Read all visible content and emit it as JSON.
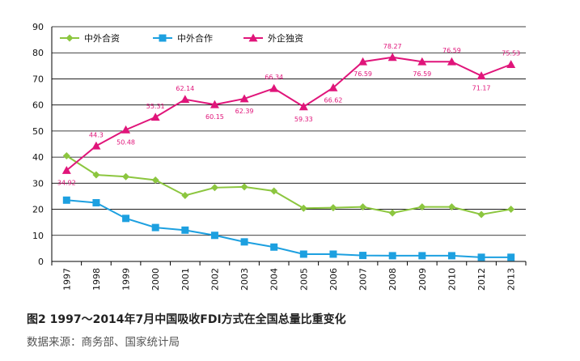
{
  "chart_data": {
    "type": "line",
    "categories": [
      "1997",
      "1998",
      "1999",
      "2000",
      "2001",
      "2002",
      "2003",
      "2004",
      "2005",
      "2006",
      "2007",
      "2008",
      "2009",
      "2010",
      "2012",
      "2013"
    ],
    "ylim": [
      0,
      90
    ],
    "yticks": [
      0,
      10,
      20,
      30,
      40,
      50,
      60,
      70,
      80,
      90
    ],
    "grid": "horizontal",
    "legend_position": "top-left",
    "series": [
      {
        "name": "中外合资",
        "marker": "diamond",
        "color": "#8cc63f",
        "values": [
          40.5,
          33.2,
          32.5,
          31.2,
          25.3,
          28.3,
          28.6,
          27.0,
          20.4,
          20.6,
          20.9,
          18.6,
          20.9,
          20.9,
          18.0,
          20.0
        ],
        "data_labels": []
      },
      {
        "name": "中外合作",
        "marker": "square",
        "color": "#1da0e0",
        "values": [
          23.5,
          22.5,
          16.5,
          13.0,
          12.0,
          10.0,
          7.5,
          5.5,
          2.8,
          2.8,
          2.3,
          2.2,
          2.2,
          2.2,
          1.6,
          1.6
        ],
        "data_labels": []
      },
      {
        "name": "外企独资",
        "marker": "triangle",
        "color": "#e0157a",
        "values": [
          34.92,
          44.3,
          50.48,
          55.31,
          62.14,
          60.15,
          62.39,
          66.34,
          59.33,
          66.62,
          76.59,
          78.27,
          76.59,
          76.59,
          71.17,
          75.53
        ],
        "data_labels": [
          "34.92",
          "44.3",
          "50.48",
          "55.31",
          "62.14",
          "60.15",
          "62.39",
          "66.34",
          "59.33",
          "66.62",
          "76.59",
          "78.27",
          "76.59",
          "76.59",
          "71.17",
          "75.53"
        ],
        "label_side": [
          "below",
          "above",
          "below",
          "above",
          "above",
          "below",
          "below",
          "above",
          "below",
          "below",
          "below",
          "above",
          "below",
          "above",
          "below",
          "above"
        ]
      }
    ]
  },
  "caption": {
    "title": "图2  1997～2014年7月中国吸收FDI方式在全国总量比重变化",
    "source": "数据来源：商务部、国家统计局"
  },
  "colors": {
    "grid": "#000000",
    "axis": "#000000",
    "label_text": "#e0157a"
  }
}
